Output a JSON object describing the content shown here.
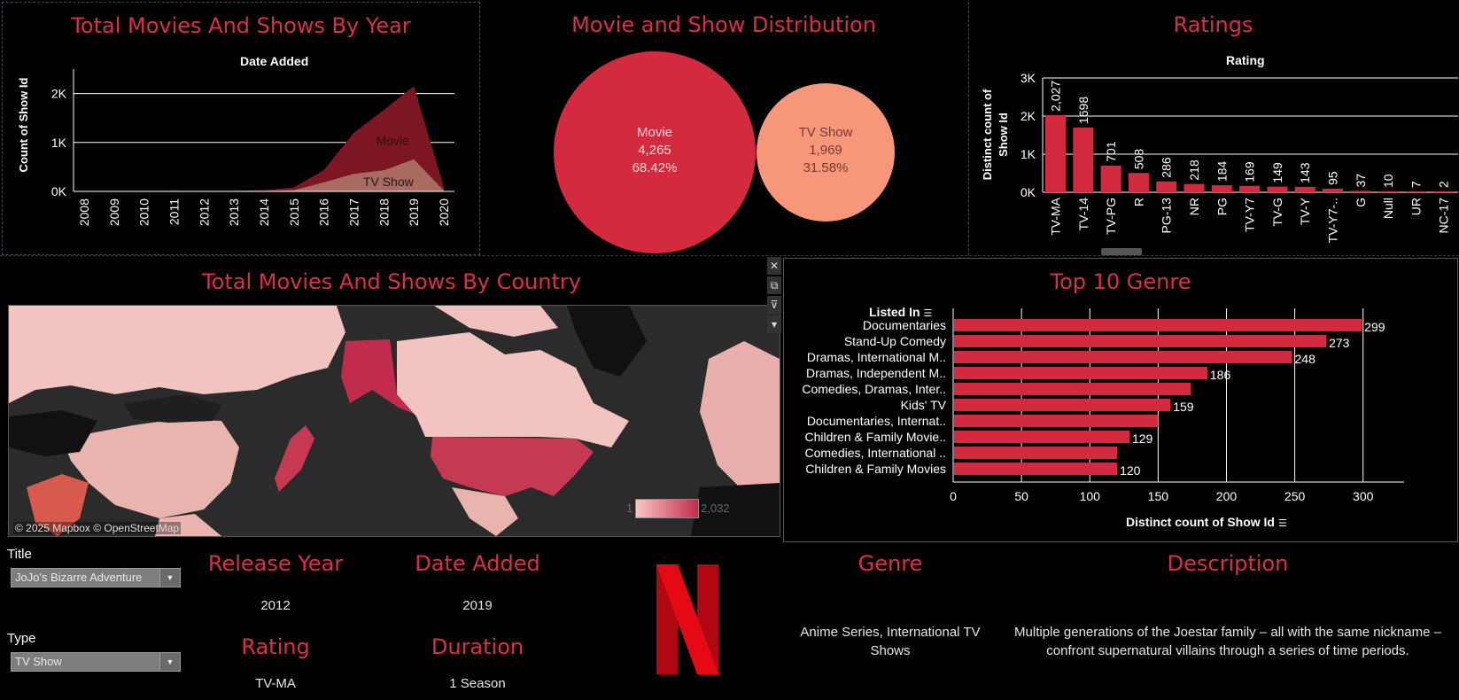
{
  "year_chart": {
    "title": "Total Movies And Shows By Year",
    "header": "Date Added",
    "ylabel": "Count of Show Id",
    "series_labels": [
      "Movie",
      "TV Show"
    ]
  },
  "distribution": {
    "title": "Movie and Show Distribution",
    "items": [
      {
        "label": "Movie",
        "count": "4,265",
        "pct": "68.42%"
      },
      {
        "label": "TV Show",
        "count": "1,969",
        "pct": "31.58%"
      }
    ]
  },
  "ratings_chart": {
    "title": "Ratings",
    "header": "Rating",
    "ylabel_line1": "Distinct count of",
    "ylabel_line2": "Show Id"
  },
  "country_map": {
    "title": "Total Movies And Shows By Country",
    "attribution": "© 2025 Mapbox © OpenStreetMap",
    "legend_min": "1",
    "legend_max": "2,032"
  },
  "genre_chart": {
    "title": "Top 10 Genre",
    "header": "Listed In",
    "xlabel": "Distinct count of Show Id"
  },
  "filters": {
    "title_label": "Title",
    "title_value": "JoJo's Bizarre Adventure",
    "type_label": "Type",
    "type_value": "TV Show"
  },
  "details": {
    "release_year_label": "Release Year",
    "release_year": "2012",
    "date_added_label": "Date Added",
    "date_added": "2019",
    "rating_label": "Rating",
    "rating": "TV-MA",
    "duration_label": "Duration",
    "duration": "1 Season",
    "genre_label": "Genre",
    "genre": "Anime Series, International TV Shows",
    "description_label": "Description",
    "description": "Multiple generations of the Joestar family – all with the same nickname – confront supernatural villains through a series of time periods."
  },
  "colors": {
    "accent": "#d9304a",
    "movie": "#d42a3f",
    "tv": "#f7977a",
    "movie_area": "#7b1622",
    "tv_area": "#a86b62"
  },
  "icons": [
    "close-icon",
    "popout-icon",
    "filter-icon",
    "dropdown-icon",
    "netflix-logo"
  ],
  "chart_data": [
    {
      "type": "area",
      "x": [
        "2008",
        "2009",
        "2010",
        "2011",
        "2012",
        "2013",
        "2014",
        "2015",
        "2016",
        "2017",
        "2018",
        "2019",
        "2020"
      ],
      "xlabel": "Date Added",
      "ylabel": "Count of Show Id",
      "yticks": [
        "0K",
        "1K",
        "2K"
      ],
      "ylim": [
        0,
        2500
      ],
      "series": [
        {
          "name": "Movie",
          "values": [
            2,
            1,
            2,
            13,
            4,
            6,
            19,
            56,
            253,
            839,
            1237,
            1497,
            78
          ]
        },
        {
          "name": "TV Show",
          "values": [
            0,
            0,
            0,
            0,
            0,
            5,
            6,
            26,
            185,
            361,
            430,
            656,
            18
          ]
        }
      ]
    },
    {
      "type": "bubble",
      "categories": [
        "Movie",
        "TV Show"
      ],
      "values": [
        4265,
        1969
      ]
    },
    {
      "type": "bar",
      "categories": [
        "TV-MA",
        "TV-14",
        "TV-PG",
        "R",
        "PG-13",
        "NR",
        "PG",
        "TV-Y7",
        "TV-G",
        "TV-Y",
        "TV-Y7-..",
        "G",
        "Null",
        "UR",
        "NC-17"
      ],
      "values": [
        2027,
        1698,
        701,
        508,
        286,
        218,
        184,
        169,
        149,
        143,
        95,
        37,
        10,
        7,
        2
      ],
      "labels": [
        "2,027",
        "1698",
        "701",
        "508",
        "286",
        "218",
        "184",
        "169",
        "149",
        "143",
        "95",
        "37",
        "10",
        "7",
        "2"
      ],
      "yticks": [
        "0K",
        "1K",
        "2K",
        "3K"
      ],
      "ylim": [
        0,
        3000
      ]
    },
    {
      "type": "hbar",
      "categories": [
        "Documentaries",
        "Stand-Up Comedy",
        "Dramas, International M..",
        "Dramas, Independent M..",
        "Comedies, Dramas, Inter..",
        "Kids' TV",
        "Documentaries, Internat..",
        "Children & Family Movie..",
        "Comedies, International ..",
        "Children & Family Movies"
      ],
      "values": [
        299,
        273,
        248,
        186,
        174,
        159,
        150,
        129,
        120,
        120
      ],
      "labels": [
        "299",
        "273",
        "248",
        "186",
        "",
        "159",
        "",
        "129",
        "",
        "120"
      ],
      "xticks": [
        0,
        50,
        100,
        150,
        200,
        250,
        300
      ],
      "xlim": [
        0,
        330
      ]
    }
  ]
}
